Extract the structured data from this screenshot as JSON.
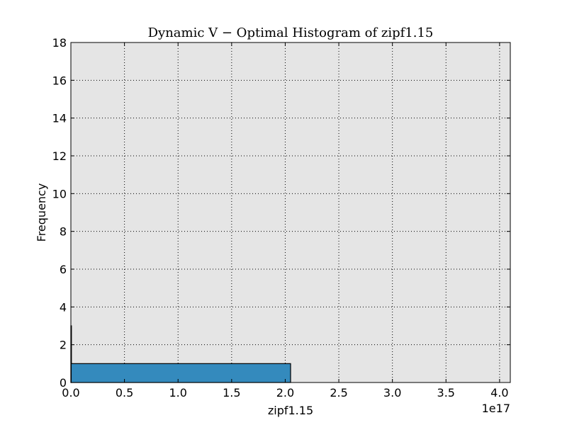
{
  "chart_data": {
    "type": "bar",
    "title": "Dynamic V − Optimal Histogram of zipf1.15",
    "xlabel": "zipf1.15",
    "ylabel": "Frequency",
    "x_offset_text": "1e17",
    "xlim": [
      0,
      4.1
    ],
    "ylim": [
      0,
      18
    ],
    "x_scale_note": "values in units of 1e17",
    "xticks": [
      0,
      0.5,
      1.0,
      1.5,
      2.0,
      2.5,
      3.0,
      3.5,
      4.0
    ],
    "xtick_labels": [
      "0.0",
      "0.5",
      "1.0",
      "1.5",
      "2.0",
      "2.5",
      "3.0",
      "3.5",
      "4.0"
    ],
    "yticks": [
      0,
      2,
      4,
      6,
      8,
      10,
      12,
      14,
      16,
      18
    ],
    "ytick_labels": [
      "0",
      "2",
      "4",
      "6",
      "8",
      "10",
      "12",
      "14",
      "16",
      "18"
    ],
    "grid": true,
    "bins": [
      {
        "left": 0.0,
        "right": 0.003,
        "value": 3
      },
      {
        "left": 0.003,
        "right": 2.05,
        "value": 1
      }
    ],
    "colors": {
      "bar_fill": "#348abd",
      "bar_edge": "#000000",
      "plot_background": "#e5e5e5",
      "grid": "#000000"
    }
  }
}
